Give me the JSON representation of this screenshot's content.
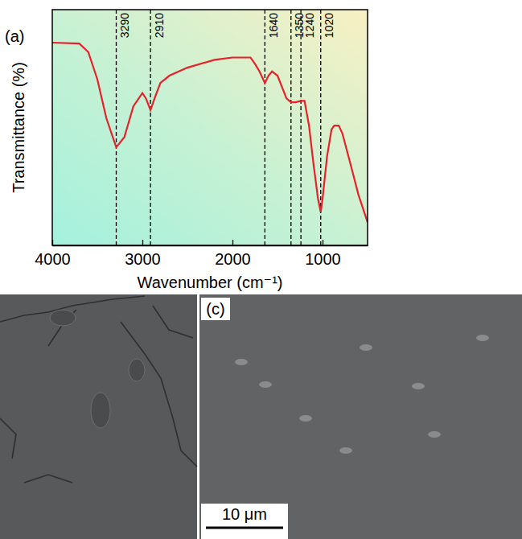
{
  "chart_data": {
    "type": "line",
    "panel_label": "(a)",
    "x_label": "Wavenumber (cm⁻¹)",
    "y_label": "Transmittance (%)",
    "x": [
      4000,
      3700,
      3600,
      3500,
      3400,
      3290,
      3200,
      3100,
      3000,
      2960,
      2910,
      2850,
      2800,
      2700,
      2500,
      2200,
      2000,
      1800,
      1750,
      1700,
      1640,
      1600,
      1560,
      1500,
      1400,
      1350,
      1300,
      1240,
      1200,
      1150,
      1100,
      1050,
      1020,
      1000,
      950,
      900,
      870,
      820,
      780,
      700,
      600,
      500
    ],
    "values": [
      86,
      85.6,
      82,
      70.5,
      54,
      41.6,
      45.9,
      59,
      64.6,
      62.3,
      57.4,
      63.9,
      68.9,
      72,
      75.4,
      78.7,
      79.7,
      79.7,
      77,
      73.8,
      68.9,
      72,
      73.8,
      72,
      62.3,
      60.7,
      60.7,
      61.3,
      61.3,
      50.8,
      34.4,
      19.7,
      14.1,
      19.7,
      37.7,
      49.2,
      50.8,
      50.8,
      47.5,
      36,
      21.3,
      9.8
    ],
    "color": "#e8202a",
    "xlim": [
      4000,
      500
    ],
    "xticks": [
      4000,
      3000,
      2000,
      1000
    ],
    "ylim": [
      0,
      100
    ],
    "tick_labels": "x",
    "marked_wavenumbers": [
      3290,
      2910,
      1640,
      1350,
      1240,
      1020
    ]
  },
  "sem_panel": {
    "label": "(c)",
    "scale_bar": "10 μm"
  }
}
